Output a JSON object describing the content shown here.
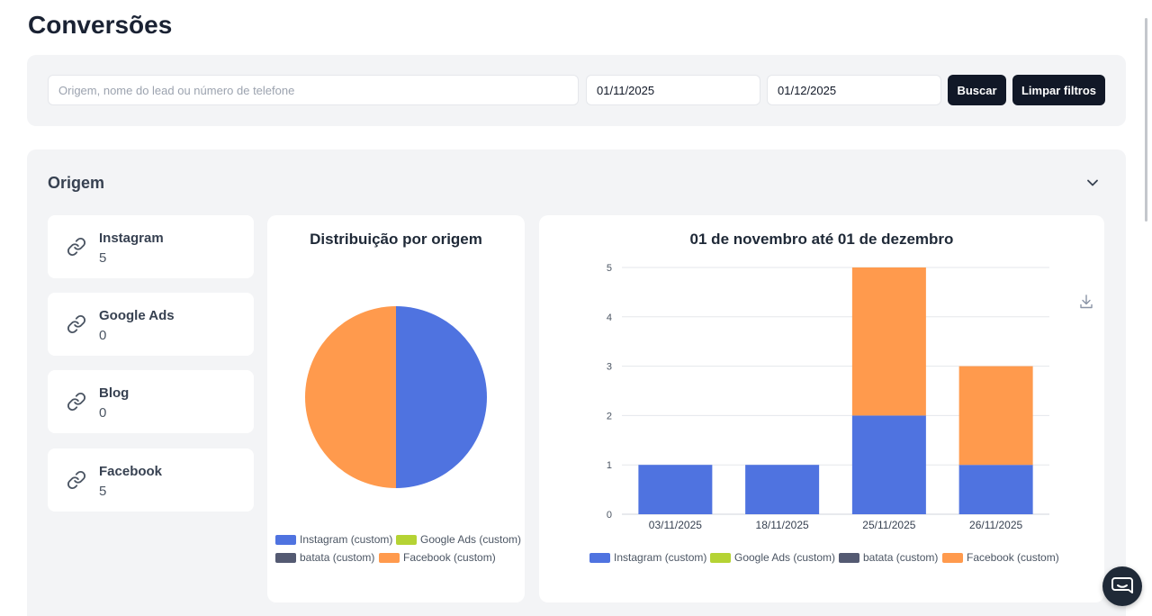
{
  "page": {
    "title": "Conversões"
  },
  "filters": {
    "search_placeholder": "Origem, nome do lead ou número de telefone",
    "search_value": "",
    "date_start": "01/11/2025",
    "date_end": "01/12/2025",
    "search_button": "Buscar",
    "clear_button": "Limpar filtros"
  },
  "section": {
    "title": "Origem",
    "toggle_icon": "chevron-down-icon"
  },
  "sources": [
    {
      "name": "Instagram",
      "count": "5",
      "icon": "link-icon"
    },
    {
      "name": "Google Ads",
      "count": "0",
      "icon": "link-icon"
    },
    {
      "name": "Blog",
      "count": "0",
      "icon": "link-icon"
    },
    {
      "name": "Facebook",
      "count": "5",
      "icon": "link-icon"
    }
  ],
  "colors": {
    "instagram": "#4f73e0",
    "google_ads": "#b5d334",
    "batata": "#545a72",
    "facebook": "#ff9a4d"
  },
  "chart_data": [
    {
      "type": "pie",
      "title": "Distribuição por origem",
      "series": [
        {
          "name": "Instagram (custom)",
          "value": 5,
          "color": "#4f73e0"
        },
        {
          "name": "Google Ads (custom)",
          "value": 0,
          "color": "#b5d334"
        },
        {
          "name": "batata (custom)",
          "value": 0,
          "color": "#545a72"
        },
        {
          "name": "Facebook (custom)",
          "value": 5,
          "color": "#ff9a4d"
        }
      ],
      "legend": "bottom"
    },
    {
      "type": "bar",
      "stacked": true,
      "title": "01 de novembro até 01 de dezembro",
      "categories": [
        "03/11/2025",
        "18/11/2025",
        "25/11/2025",
        "26/11/2025"
      ],
      "series": [
        {
          "name": "Instagram (custom)",
          "values": [
            1,
            1,
            2,
            1
          ],
          "color": "#4f73e0"
        },
        {
          "name": "Google Ads (custom)",
          "values": [
            0,
            0,
            0,
            0
          ],
          "color": "#b5d334"
        },
        {
          "name": "batata (custom)",
          "values": [
            0,
            0,
            0,
            0
          ],
          "color": "#545a72"
        },
        {
          "name": "Facebook (custom)",
          "values": [
            0,
            0,
            3,
            2
          ],
          "color": "#ff9a4d"
        }
      ],
      "ylim": [
        0,
        5
      ],
      "yticks": [
        "0",
        "1",
        "2",
        "3",
        "4",
        "5"
      ],
      "grid": true,
      "legend": "bottom",
      "download_icon": "download-icon"
    }
  ],
  "support": {
    "chat_icon": "chat-bubble-icon"
  }
}
